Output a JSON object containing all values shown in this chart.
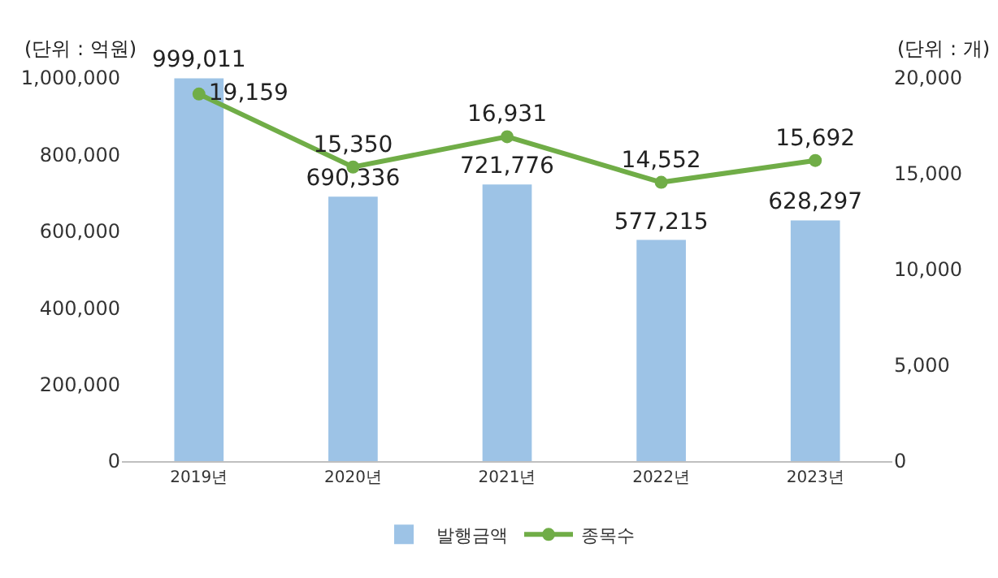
{
  "chart_data": {
    "type": "bar",
    "categories": [
      "2019년",
      "2020년",
      "2021년",
      "2022년",
      "2023년"
    ],
    "series": [
      {
        "name": "발행금액",
        "color": "#9dc3e6",
        "values": [
          999011,
          690336,
          721776,
          577215,
          628297
        ],
        "value_labels": [
          "999,011",
          "690,336",
          "721,776",
          "577,215",
          "628,297"
        ]
      },
      {
        "name": "종목수",
        "type": "line",
        "axis": "y2",
        "color": "#70ad47",
        "marker": "circle",
        "values": [
          19159,
          15350,
          16931,
          14552,
          15692
        ],
        "value_labels": [
          "19,159",
          "15,350",
          "16,931",
          "14,552",
          "15,692"
        ]
      }
    ],
    "ylabel": "(단위 : 억원)",
    "y2label": "(단위 : 개)",
    "ylim": [
      0,
      1000000
    ],
    "yticks": [
      {
        "value": 0,
        "label": "0"
      },
      {
        "value": 200000,
        "label": "200,000"
      },
      {
        "value": 400000,
        "label": "400,000"
      },
      {
        "value": 600000,
        "label": "600,000"
      },
      {
        "value": 800000,
        "label": "800,000"
      },
      {
        "value": 1000000,
        "label": "1,000,000"
      }
    ],
    "y2lim": [
      0,
      20000
    ],
    "y2ticks": [
      {
        "value": 0,
        "label": "0"
      },
      {
        "value": 5000,
        "label": "5,000"
      },
      {
        "value": 10000,
        "label": "10,000"
      },
      {
        "value": 15000,
        "label": "15,000"
      },
      {
        "value": 20000,
        "label": "20,000"
      }
    ],
    "legend": "bottom"
  }
}
